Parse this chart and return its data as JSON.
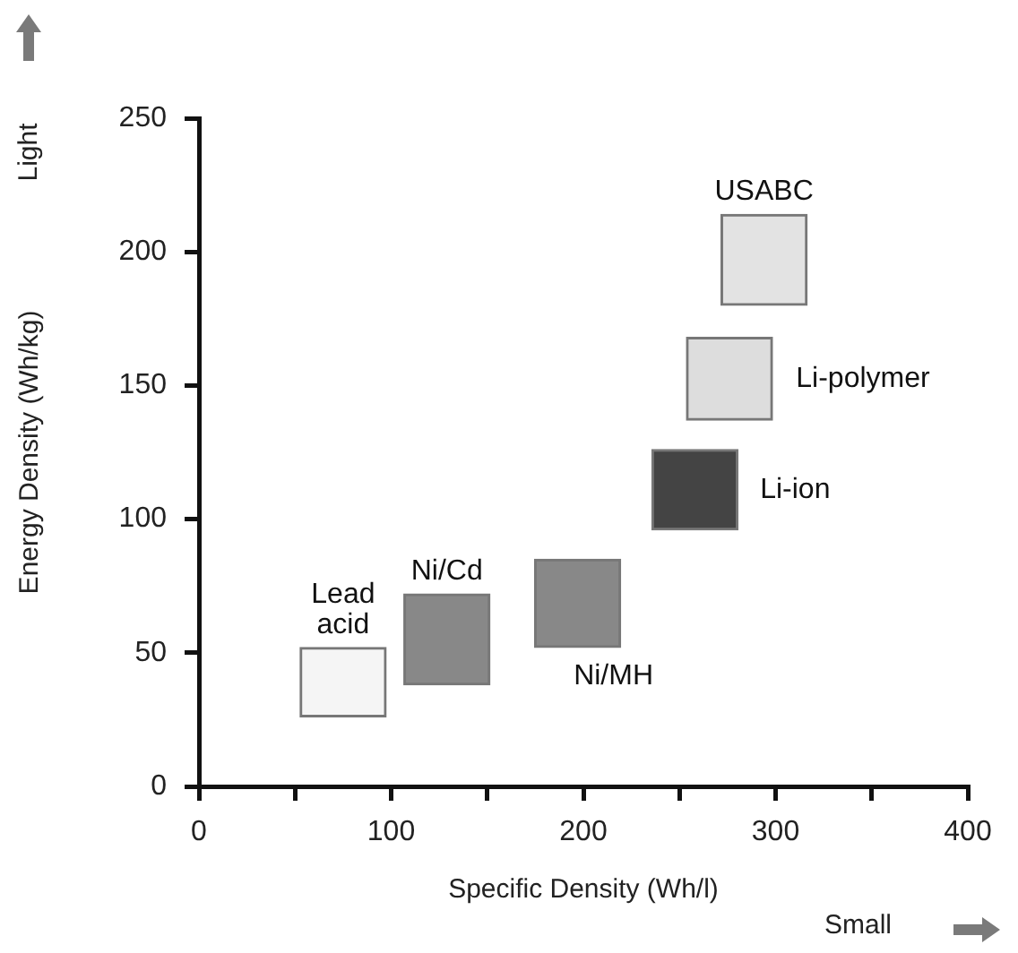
{
  "chart_data": {
    "type": "bar",
    "xlabel": "Specific Density (Wh/l)",
    "ylabel": "Energy Density (Wh/kg)",
    "annotations": [
      "Light",
      "Small"
    ],
    "grid": false,
    "legend": false,
    "xlim": [
      0,
      400
    ],
    "xticks": [
      0,
      {
        "value": 50,
        "label": null
      },
      100,
      {
        "value": 150,
        "label": null
      },
      200,
      {
        "value": 250,
        "label": null
      },
      300,
      {
        "value": 350,
        "label": null
      },
      400
    ],
    "ylim": [
      0,
      250
    ],
    "yticks": [
      0,
      50,
      100,
      150,
      200,
      250
    ],
    "series": [
      {
        "name": "Lead acid",
        "color": "#f5f5f5",
        "x": [
          75
        ],
        "base": [
          26
        ],
        "values": [
          26
        ]
      },
      {
        "name": "Ni/Cd",
        "color": "#888888",
        "x": [
          129
        ],
        "base": [
          38
        ],
        "values": [
          34
        ]
      },
      {
        "name": "Ni/MH",
        "color": "#888888",
        "x": [
          197
        ],
        "base": [
          52
        ],
        "values": [
          33
        ]
      },
      {
        "name": "Li-ion",
        "color": "#444444",
        "x": [
          258
        ],
        "base": [
          96
        ],
        "values": [
          30
        ]
      },
      {
        "name": "Li-polymer",
        "color": "#dddddd",
        "x": [
          276
        ],
        "base": [
          137
        ],
        "values": [
          31
        ]
      },
      {
        "name": "USABC",
        "color": "#e3e3e3",
        "x": [
          294
        ],
        "base": [
          180
        ],
        "values": [
          34
        ]
      }
    ]
  }
}
